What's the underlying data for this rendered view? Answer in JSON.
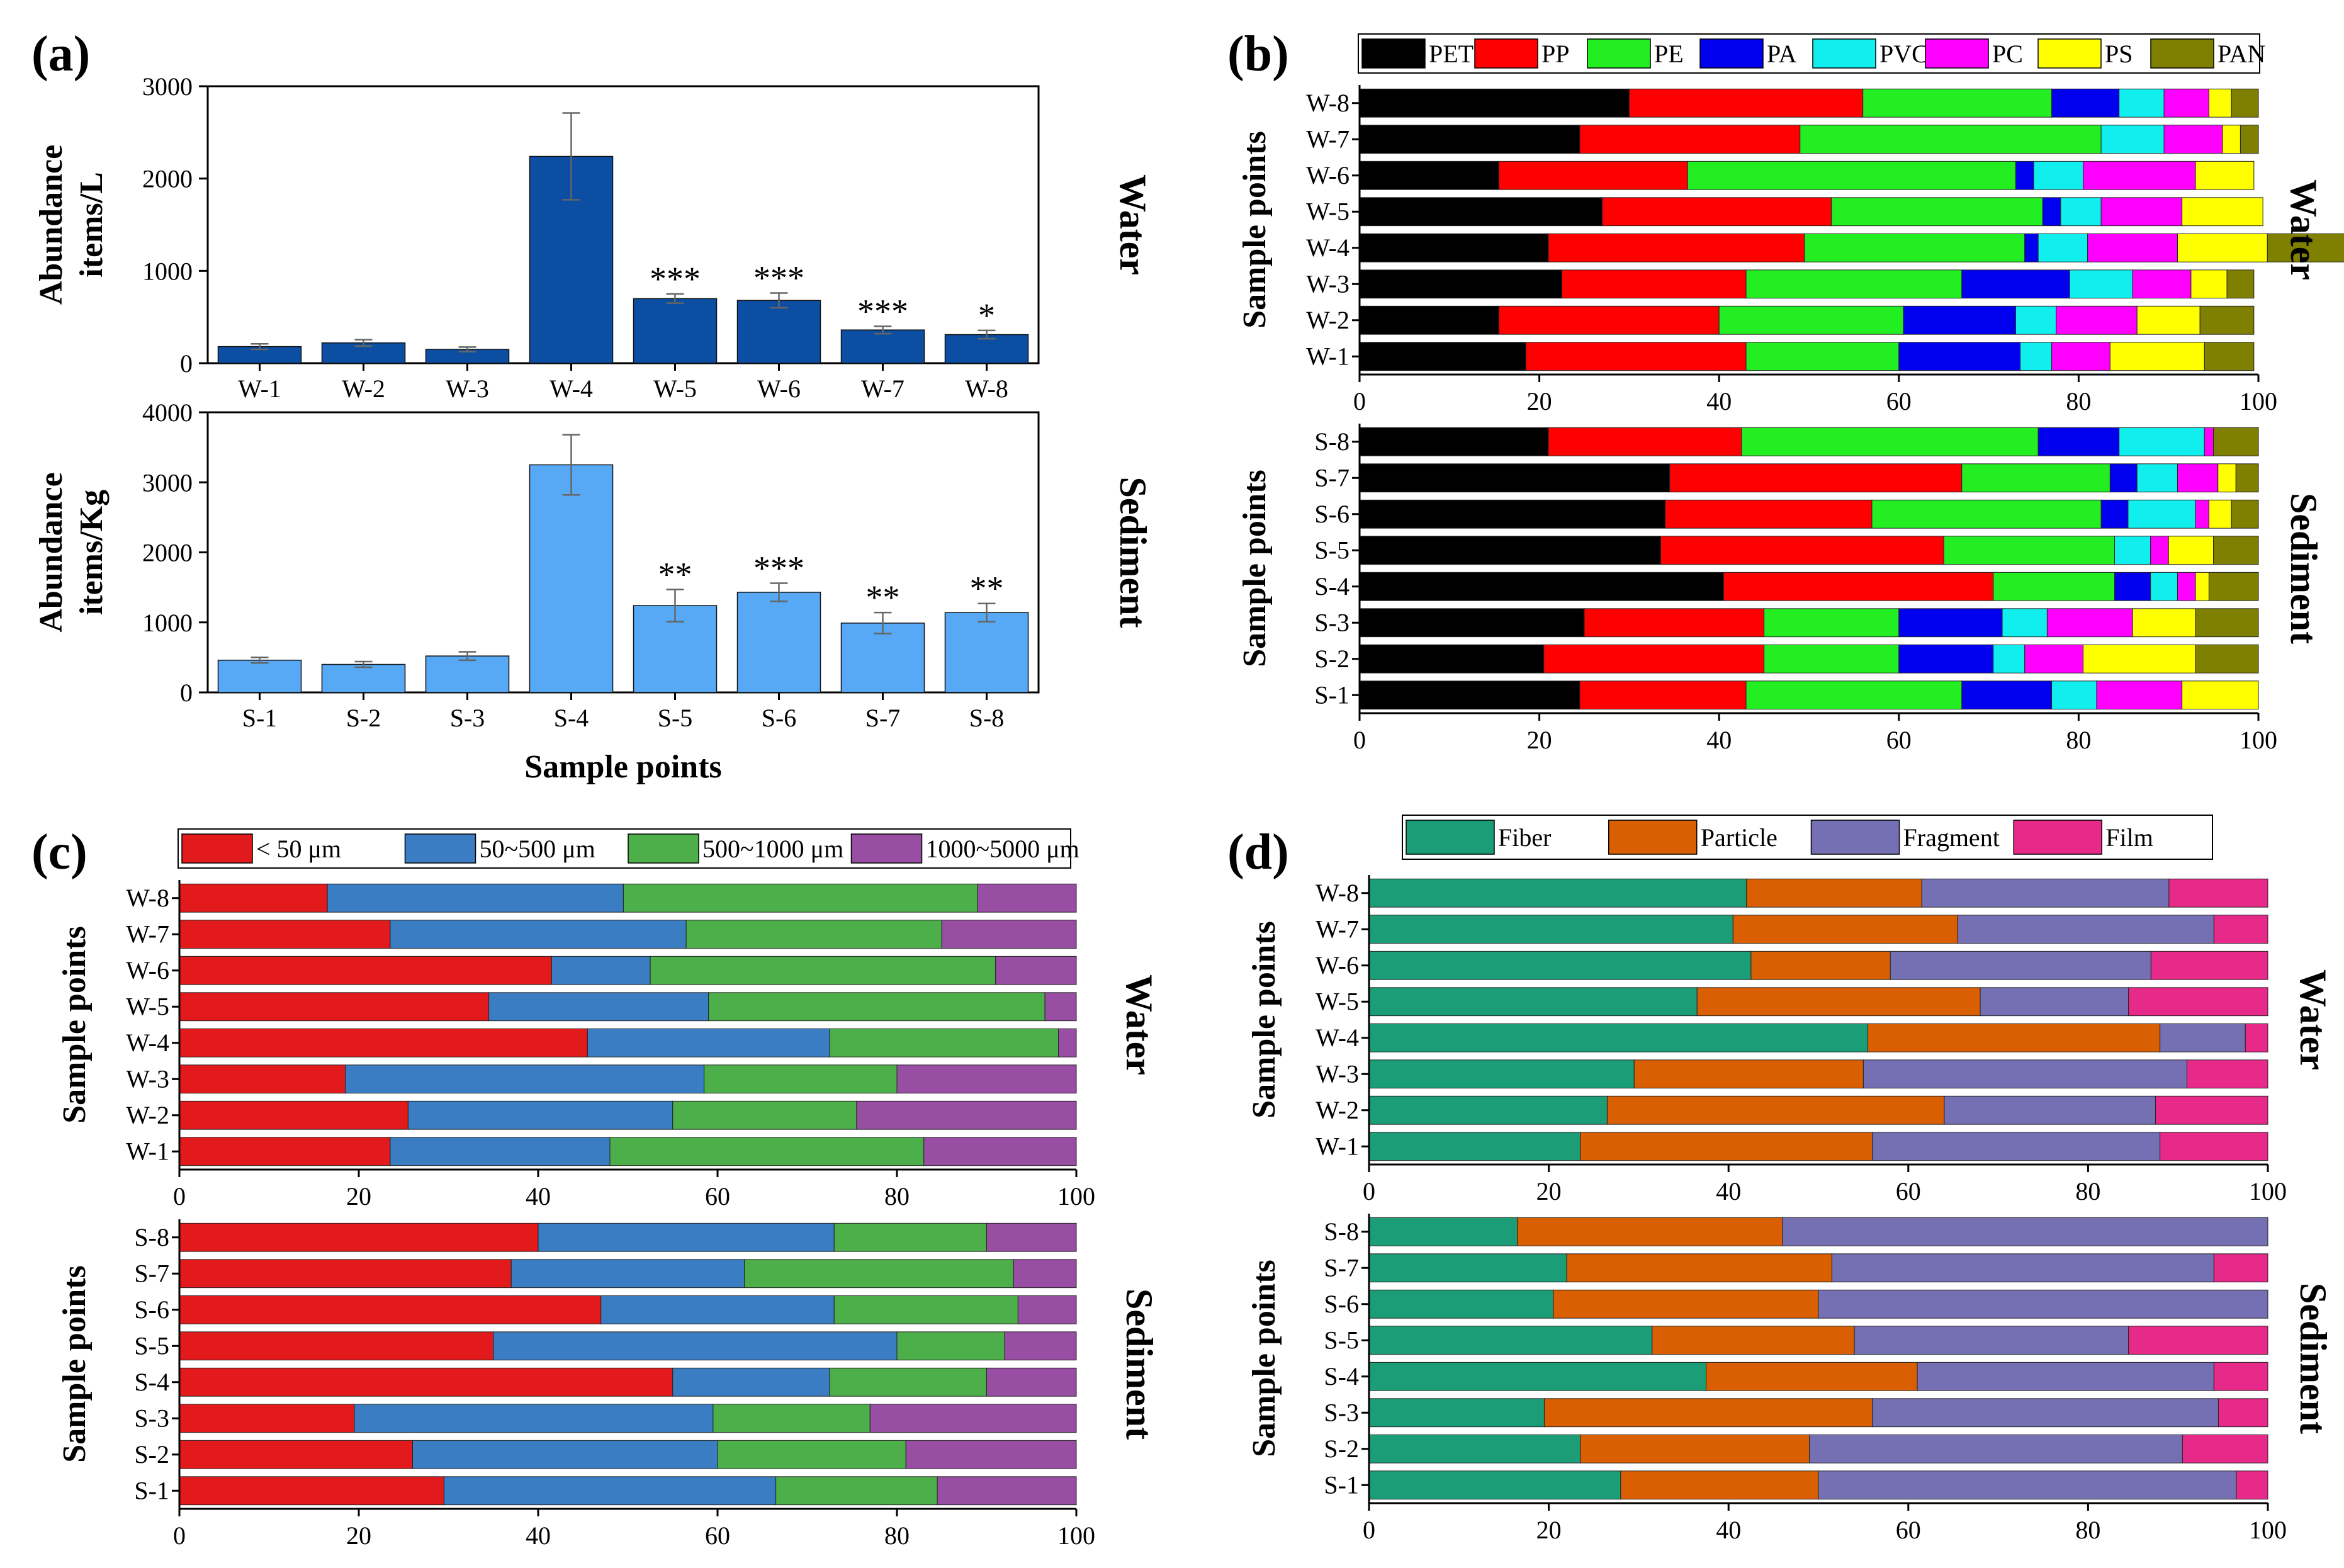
{
  "panel_labels": {
    "a": "(a)",
    "b": "(b)",
    "c": "(c)",
    "d": "(d)"
  },
  "chart_data": [
    {
      "id": "a-water",
      "type": "bar",
      "panel": "(a)",
      "title": "",
      "categories": [
        "W-1",
        "W-2",
        "W-3",
        "W-4",
        "W-5",
        "W-6",
        "W-7",
        "W-8"
      ],
      "values": [
        180,
        220,
        150,
        2240,
        700,
        680,
        360,
        310
      ],
      "errors": [
        30,
        35,
        25,
        470,
        50,
        80,
        40,
        45
      ],
      "significance": [
        "",
        "",
        "",
        "",
        "***",
        "***",
        "***",
        "*"
      ],
      "ylabel": [
        "Abundance",
        "items/L"
      ],
      "yticks": [
        0,
        1000,
        2000,
        3000
      ],
      "ylim": [
        0,
        3000
      ],
      "side_label": "Water",
      "color": "#0b4ea2"
    },
    {
      "id": "a-sediment",
      "type": "bar",
      "panel": "(a)",
      "title": "",
      "categories": [
        "S-1",
        "S-2",
        "S-3",
        "S-4",
        "S-5",
        "S-6",
        "S-7",
        "S-8"
      ],
      "values": [
        460,
        400,
        520,
        3250,
        1240,
        1430,
        990,
        1140
      ],
      "errors": [
        40,
        40,
        60,
        430,
        230,
        130,
        150,
        130
      ],
      "significance": [
        "",
        "",
        "",
        "",
        "**",
        "***",
        "**",
        "**"
      ],
      "ylabel": [
        "Abundance",
        "items/Kg"
      ],
      "xlabel": "Sample points",
      "yticks": [
        0,
        1000,
        2000,
        3000,
        4000
      ],
      "ylim": [
        0,
        4000
      ],
      "side_label": "Sediment",
      "color": "#57a8f5"
    },
    {
      "id": "b-water",
      "type": "bar",
      "orientation": "horizontal-stacked",
      "panel": "(b)",
      "ylabel": "Sample points",
      "side_label": "Water",
      "xlim": [
        0,
        100
      ],
      "xticks": [
        0,
        20,
        40,
        60,
        80,
        100
      ],
      "legend": [
        "PET",
        "PP",
        "PE",
        "PA",
        "PVC",
        "PC",
        "PS",
        "PAN"
      ],
      "colors": [
        "#000000",
        "#ff0000",
        "#22ee22",
        "#0000ee",
        "#11eeee",
        "#ff00ff",
        "#ffff00",
        "#808000"
      ],
      "categories": [
        "W-1",
        "W-2",
        "W-3",
        "W-4",
        "W-5",
        "W-6",
        "W-7",
        "W-8"
      ],
      "series_values": [
        [
          18.5,
          24.5,
          17,
          13.5,
          3.5,
          6.5,
          10.5,
          5.5
        ],
        [
          15.5,
          24.5,
          20.5,
          12.5,
          4.5,
          9,
          7,
          6
        ],
        [
          22.5,
          20.5,
          24,
          12,
          7,
          6.5,
          4,
          3
        ],
        [
          21,
          28.5,
          24.5,
          1.5,
          5.5,
          10,
          10,
          9
        ],
        [
          27,
          25.5,
          23.5,
          2,
          4.5,
          9,
          9,
          0
        ],
        [
          15.5,
          21,
          36.5,
          2,
          5.5,
          12.5,
          6.5,
          0
        ],
        [
          24.5,
          24.5,
          33.5,
          0,
          7,
          6.5,
          2,
          2
        ],
        [
          30,
          26,
          21,
          7.5,
          5,
          5,
          2.5,
          3
        ]
      ]
    },
    {
      "id": "b-sediment",
      "type": "bar",
      "orientation": "horizontal-stacked",
      "panel": "(b)",
      "ylabel": "Sample points",
      "side_label": "Sediment",
      "xlim": [
        0,
        100
      ],
      "xticks": [
        0,
        20,
        40,
        60,
        80,
        100
      ],
      "legend": [
        "PET",
        "PP",
        "PE",
        "PA",
        "PVC",
        "PC",
        "PS",
        "PAN"
      ],
      "colors": [
        "#000000",
        "#ff0000",
        "#22ee22",
        "#0000ee",
        "#11eeee",
        "#ff00ff",
        "#ffff00",
        "#808000"
      ],
      "categories": [
        "S-1",
        "S-2",
        "S-3",
        "S-4",
        "S-5",
        "S-6",
        "S-7",
        "S-8"
      ],
      "series_values": [
        [
          24.5,
          18.5,
          24,
          10,
          5,
          9.5,
          8.5,
          0
        ],
        [
          20.5,
          24.5,
          15,
          10.5,
          3.5,
          6.5,
          12.5,
          7
        ],
        [
          25,
          20,
          15,
          11.5,
          5,
          9.5,
          7,
          7
        ],
        [
          40.5,
          30,
          13.5,
          4,
          3,
          2,
          1.5,
          5.5
        ],
        [
          33.5,
          31.5,
          19,
          0,
          4,
          2,
          5,
          5
        ],
        [
          34,
          23,
          25.5,
          3,
          7.5,
          1.5,
          2.5,
          3
        ],
        [
          34.5,
          32.5,
          16.5,
          3,
          4.5,
          4.5,
          2,
          2.5
        ],
        [
          21,
          21.5,
          33,
          9,
          9.5,
          1,
          0,
          5
        ]
      ]
    },
    {
      "id": "c-water",
      "type": "bar",
      "orientation": "horizontal-stacked",
      "panel": "(c)",
      "ylabel": "Sample points",
      "side_label": "Water",
      "xlim": [
        0,
        100
      ],
      "xticks": [
        0,
        20,
        40,
        60,
        80,
        100
      ],
      "legend": [
        "< 50 μm",
        "50~500 μm",
        "500~1000 μm",
        "1000~5000 μm"
      ],
      "colors": [
        "#e31a1c",
        "#3a7dc2",
        "#4daf4a",
        "#984ea3"
      ],
      "categories": [
        "W-1",
        "W-2",
        "W-3",
        "W-4",
        "W-5",
        "W-6",
        "W-7",
        "W-8"
      ],
      "series_values": [
        [
          23.5,
          24.5,
          35,
          17
        ],
        [
          25.5,
          29.5,
          20.5,
          24.5
        ],
        [
          18.5,
          40,
          21.5,
          20
        ],
        [
          45.5,
          27,
          25.5,
          2
        ],
        [
          34.5,
          24.5,
          37.5,
          3.5
        ],
        [
          41.5,
          11,
          38.5,
          9
        ],
        [
          23.5,
          33,
          28.5,
          15
        ],
        [
          16.5,
          33,
          39.5,
          11
        ]
      ]
    },
    {
      "id": "c-sediment",
      "type": "bar",
      "orientation": "horizontal-stacked",
      "panel": "(c)",
      "ylabel": "Sample points",
      "side_label": "Sediment",
      "xlim": [
        0,
        100
      ],
      "xticks": [
        0,
        20,
        40,
        60,
        80,
        100
      ],
      "legend": [
        "< 50 μm",
        "50~500 μm",
        "500~1000 μm",
        "1000~5000 μm"
      ],
      "colors": [
        "#e31a1c",
        "#3a7dc2",
        "#4daf4a",
        "#984ea3"
      ],
      "categories": [
        "S-1",
        "S-2",
        "S-3",
        "S-4",
        "S-5",
        "S-6",
        "S-7",
        "S-8"
      ],
      "series_values": [
        [
          29.5,
          37,
          18,
          15.5
        ],
        [
          26,
          34,
          21,
          19
        ],
        [
          19.5,
          40,
          17.5,
          23
        ],
        [
          55,
          17.5,
          17.5,
          10
        ],
        [
          35,
          45,
          12,
          8
        ],
        [
          47,
          26,
          20.5,
          6.5
        ],
        [
          37,
          26,
          30,
          7
        ],
        [
          40,
          33,
          17,
          10
        ]
      ]
    },
    {
      "id": "d-water",
      "type": "bar",
      "orientation": "horizontal-stacked",
      "panel": "(d)",
      "ylabel": "Sample points",
      "side_label": "Water",
      "xlim": [
        0,
        100
      ],
      "xticks": [
        0,
        20,
        40,
        60,
        80,
        100
      ],
      "legend": [
        "Fiber",
        "Particle",
        "Fragment",
        "Film"
      ],
      "colors": [
        "#1b9e77",
        "#d95f02",
        "#7570b3",
        "#e7298a"
      ],
      "categories": [
        "W-1",
        "W-2",
        "W-3",
        "W-4",
        "W-5",
        "W-6",
        "W-7",
        "W-8"
      ],
      "series_values": [
        [
          23.5,
          32.5,
          32,
          12
        ],
        [
          26.5,
          37.5,
          23.5,
          12.5
        ],
        [
          29.5,
          25.5,
          36,
          9
        ],
        [
          55.5,
          32.5,
          9.5,
          2.5
        ],
        [
          36.5,
          31.5,
          16.5,
          15.5
        ],
        [
          42.5,
          15.5,
          29,
          13
        ],
        [
          40.5,
          25,
          28.5,
          6
        ],
        [
          42,
          19.5,
          27.5,
          11
        ]
      ]
    },
    {
      "id": "d-sediment",
      "type": "bar",
      "orientation": "horizontal-stacked",
      "panel": "(d)",
      "ylabel": "Sample points",
      "side_label": "Sediment",
      "xlim": [
        0,
        100
      ],
      "xticks": [
        0,
        20,
        40,
        60,
        80,
        100
      ],
      "legend": [
        "Fiber",
        "Particle",
        "Fragment",
        "Film"
      ],
      "colors": [
        "#1b9e77",
        "#d95f02",
        "#7570b3",
        "#e7298a"
      ],
      "categories": [
        "S-1",
        "S-2",
        "S-3",
        "S-4",
        "S-5",
        "S-6",
        "S-7",
        "S-8"
      ],
      "series_values": [
        [
          28,
          22,
          46.5,
          3.5
        ],
        [
          23.5,
          25.5,
          41.5,
          9.5
        ],
        [
          19.5,
          36.5,
          38.5,
          5.5
        ],
        [
          37.5,
          23.5,
          33,
          6
        ],
        [
          31.5,
          22.5,
          30.5,
          15.5
        ],
        [
          20.5,
          29.5,
          50,
          0
        ],
        [
          22,
          29.5,
          42.5,
          6
        ],
        [
          16.5,
          29.5,
          54,
          0
        ]
      ]
    }
  ]
}
